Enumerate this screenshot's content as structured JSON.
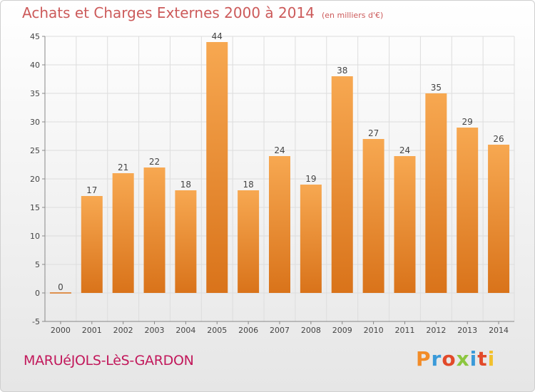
{
  "header": {
    "title": "Achats et Charges Externes 2000 à 2014",
    "subtitle": "(en milliers d'€)"
  },
  "footer": {
    "commune": "MARUéJOLS-LèS-GARDON",
    "brand": "Proxiti",
    "brand_colors": [
      "#f28c28",
      "#3a9ad9",
      "#e24a2a",
      "#8cc63f",
      "#3a9ad9",
      "#e24a2a",
      "#f2c12e"
    ]
  },
  "colors": {
    "bar_top": "#f7a851",
    "bar_bottom": "#d9731a",
    "grid": "#dddddd",
    "axis_text": "#444444",
    "title": "#cc5a5a",
    "commune": "#c2185b"
  },
  "chart_data": {
    "type": "bar",
    "categories": [
      "2000",
      "2001",
      "2002",
      "2003",
      "2004",
      "2005",
      "2006",
      "2007",
      "2008",
      "2009",
      "2010",
      "2011",
      "2012",
      "2013",
      "2014"
    ],
    "values": [
      0,
      17,
      21,
      22,
      18,
      44,
      18,
      24,
      19,
      38,
      27,
      24,
      35,
      29,
      26
    ],
    "title": "Achats et Charges Externes 2000 à 2014",
    "ylim": [
      -5,
      45
    ],
    "yticks": [
      -5,
      0,
      5,
      10,
      15,
      20,
      25,
      30,
      35,
      40,
      45
    ],
    "grid": true,
    "data_labels": true
  }
}
